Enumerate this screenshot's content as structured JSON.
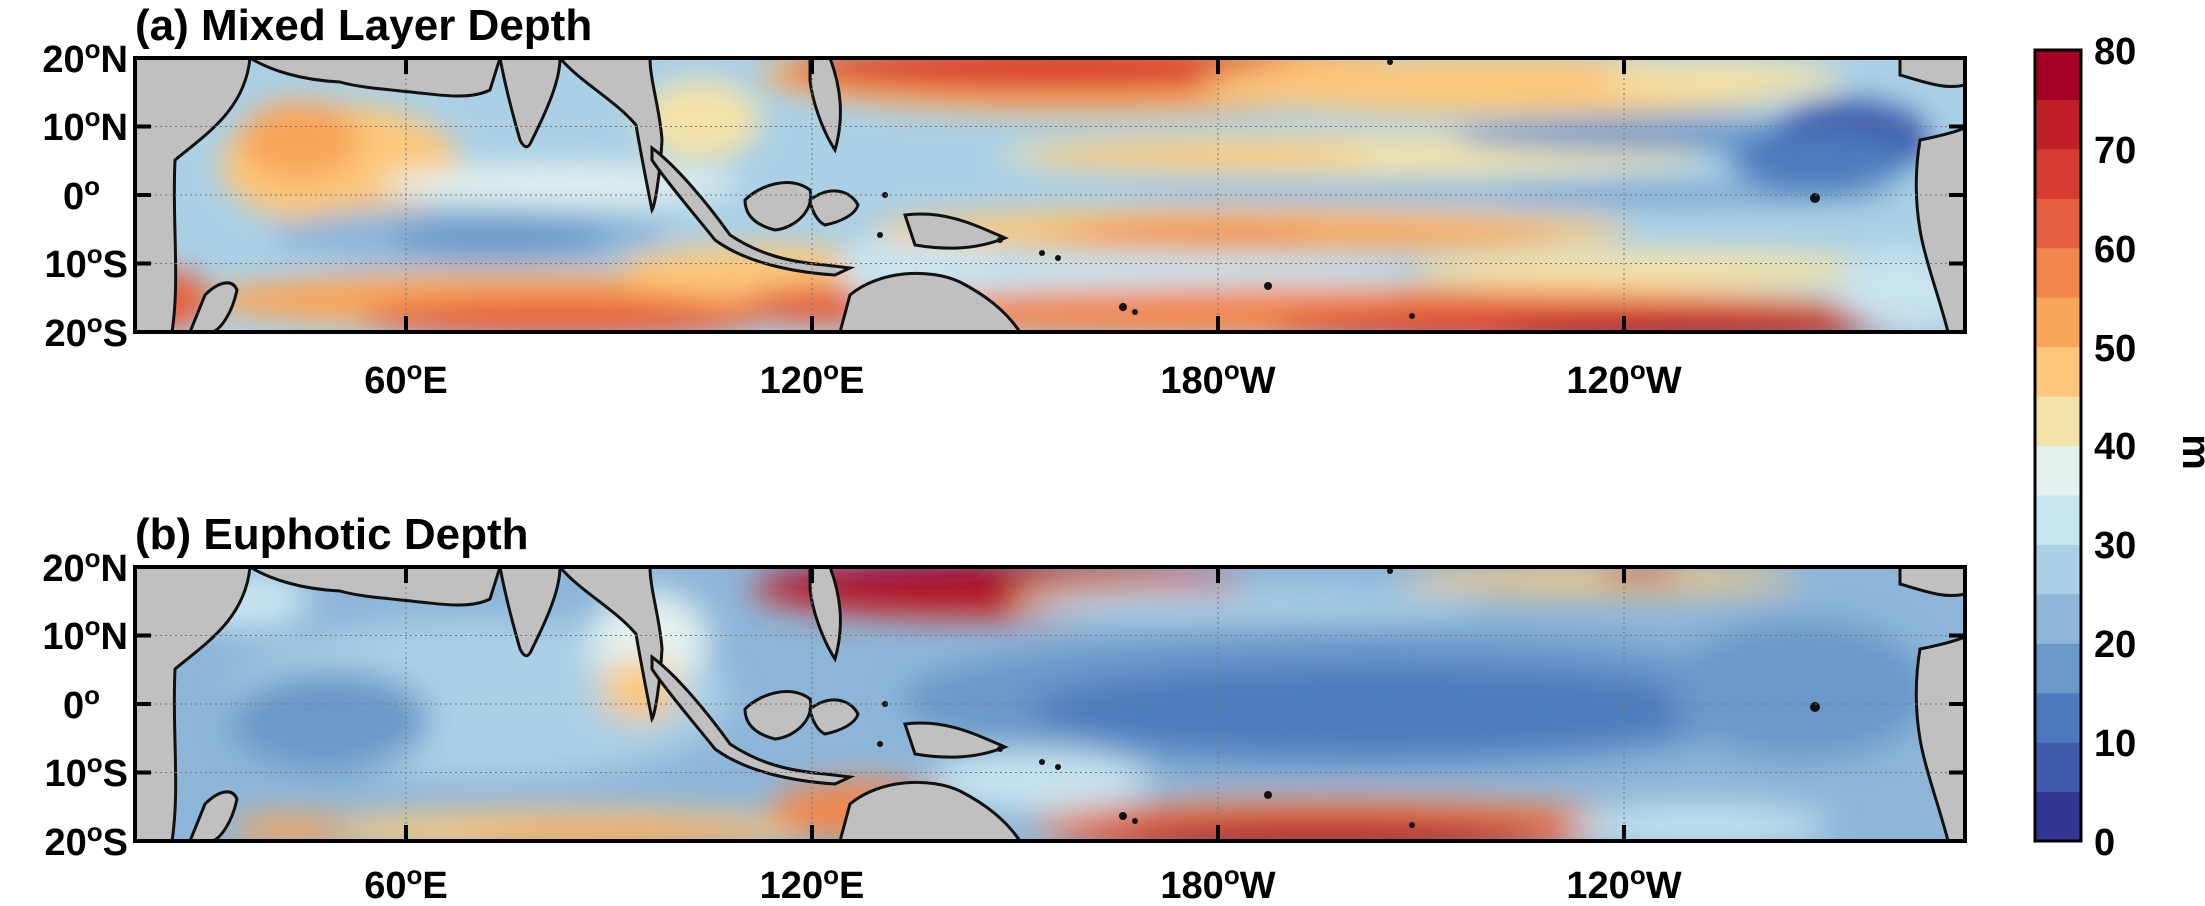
{
  "panels": [
    {
      "title": "(a) Mixed Layer Depth",
      "lat_ticks": [
        {
          "base": "20",
          "sup": "o",
          "suffix": "N"
        },
        {
          "base": "10",
          "sup": "o",
          "suffix": "N"
        },
        {
          "base": "0",
          "sup": "o",
          "suffix": ""
        },
        {
          "base": "10",
          "sup": "o",
          "suffix": "S"
        },
        {
          "base": "20",
          "sup": "o",
          "suffix": "S"
        }
      ],
      "lon_ticks": [
        {
          "base": "60",
          "sup": "o",
          "suffix": "E"
        },
        {
          "base": "120",
          "sup": "o",
          "suffix": "E"
        },
        {
          "base": "180",
          "sup": "o",
          "suffix": "W"
        },
        {
          "base": "120",
          "sup": "o",
          "suffix": "W"
        }
      ]
    },
    {
      "title": "(b) Euphotic Depth",
      "lat_ticks": [
        {
          "base": "20",
          "sup": "o",
          "suffix": "N"
        },
        {
          "base": "10",
          "sup": "o",
          "suffix": "N"
        },
        {
          "base": "0",
          "sup": "o",
          "suffix": ""
        },
        {
          "base": "10",
          "sup": "o",
          "suffix": "S"
        },
        {
          "base": "20",
          "sup": "o",
          "suffix": "S"
        }
      ],
      "lon_ticks": [
        {
          "base": "60",
          "sup": "o",
          "suffix": "E"
        },
        {
          "base": "120",
          "sup": "o",
          "suffix": "E"
        },
        {
          "base": "180",
          "sup": "o",
          "suffix": "W"
        },
        {
          "base": "120",
          "sup": "o",
          "suffix": "W"
        }
      ]
    }
  ],
  "colorbar": {
    "unit": "m",
    "tick_labels": [
      "80",
      "70",
      "60",
      "50",
      "40",
      "30",
      "20",
      "10",
      "0"
    ],
    "levels": [
      0,
      5,
      10,
      15,
      20,
      25,
      30,
      35,
      40,
      45,
      50,
      55,
      60,
      65,
      70,
      75,
      80
    ],
    "colors": [
      "#313695",
      "#3f5bab",
      "#4b7bbd",
      "#6a98c9",
      "#8db6d9",
      "#abd0e6",
      "#c8e4ef",
      "#e3f1ef",
      "#f4e3a8",
      "#fcc77a",
      "#f9a65a",
      "#f3864c",
      "#e5603e",
      "#d73a2e",
      "#c11f27",
      "#a50026"
    ]
  },
  "colors": {
    "land": "#c0c0c0",
    "coast": "#111111",
    "grid": "#777777"
  }
}
